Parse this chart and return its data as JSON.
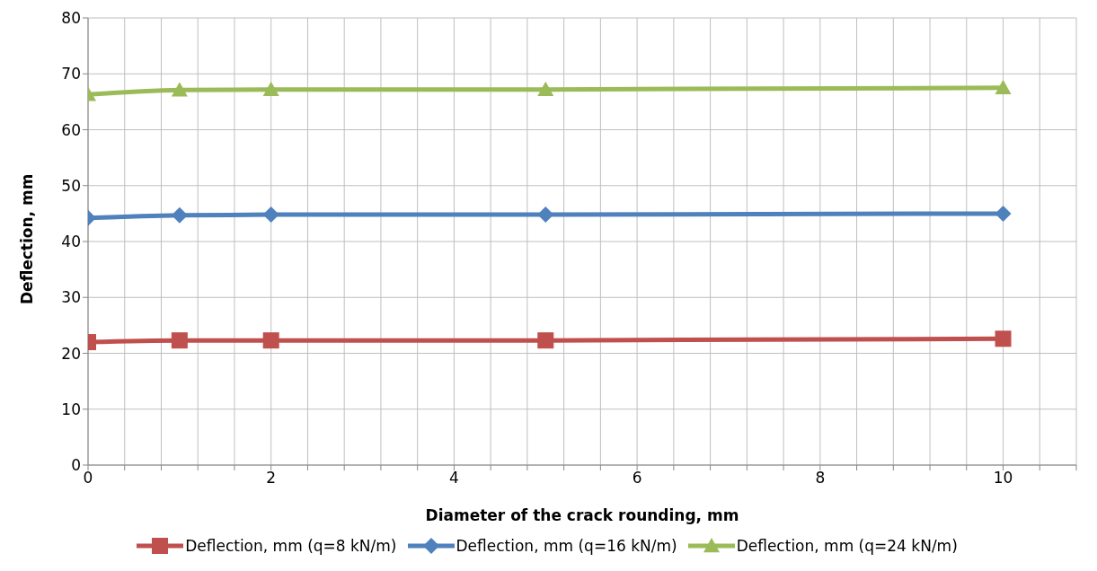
{
  "chart_data": {
    "type": "line",
    "xlabel": "Diameter of the crack rounding, mm",
    "ylabel": "Deflection, mm",
    "x": [
      0,
      1,
      2,
      5,
      10
    ],
    "series": [
      {
        "name": "Deflection, mm (q=8 kN/m)",
        "color": "#c0504d",
        "marker": "square",
        "values": [
          22,
          22.3,
          22.3,
          22.3,
          22.6
        ]
      },
      {
        "name": "Deflection, mm (q=16 kN/m)",
        "color": "#4f81bd",
        "marker": "diamond",
        "values": [
          44.2,
          44.7,
          44.8,
          44.8,
          45
        ]
      },
      {
        "name": "Deflection, mm (q=24 kN/m)",
        "color": "#9bbb59",
        "marker": "triangle",
        "values": [
          66.3,
          67.1,
          67.2,
          67.2,
          67.5
        ]
      }
    ],
    "xlim": [
      0,
      10.8
    ],
    "xticks": [
      0,
      {
        "value": 0.4,
        "label": null
      },
      {
        "value": 0.8,
        "label": null
      },
      {
        "value": 1.2,
        "label": null
      },
      {
        "value": 1.6,
        "label": null
      },
      2,
      {
        "value": 2.4,
        "label": null
      },
      {
        "value": 2.8,
        "label": null
      },
      {
        "value": 3.2,
        "label": null
      },
      {
        "value": 3.6,
        "label": null
      },
      4,
      {
        "value": 4.4,
        "label": null
      },
      {
        "value": 4.8,
        "label": null
      },
      {
        "value": 5.2,
        "label": null
      },
      {
        "value": 5.6,
        "label": null
      },
      6,
      {
        "value": 6.4,
        "label": null
      },
      {
        "value": 6.8,
        "label": null
      },
      {
        "value": 7.2,
        "label": null
      },
      {
        "value": 7.6,
        "label": null
      },
      8,
      {
        "value": 8.4,
        "label": null
      },
      {
        "value": 8.8,
        "label": null
      },
      {
        "value": 9.2,
        "label": null
      },
      {
        "value": 9.6,
        "label": null
      },
      10,
      {
        "value": 10.4,
        "label": null
      },
      {
        "value": 10.8,
        "label": null
      }
    ],
    "ylim": [
      0,
      80
    ],
    "yticks": [
      0,
      10,
      20,
      30,
      40,
      50,
      60,
      70,
      80
    ],
    "grid": true,
    "legend": "bottom",
    "line_style": "solid"
  }
}
